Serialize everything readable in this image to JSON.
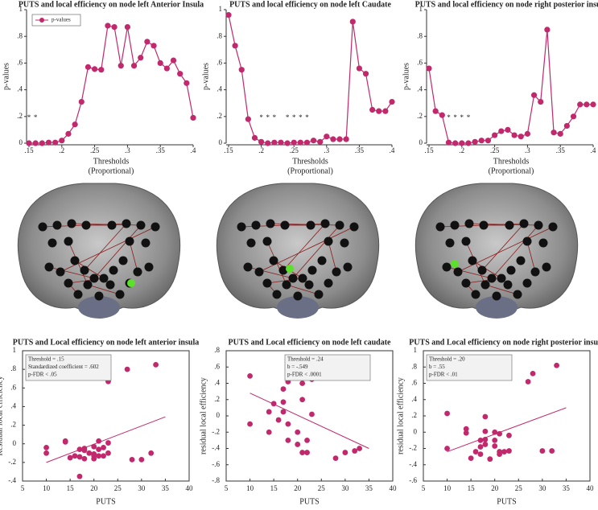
{
  "chart_data": [
    {
      "type": "line",
      "title": "PUTS and local efficiency on node left Anterior Insula",
      "xlabel": [
        "Thresholds",
        "(Proportional)"
      ],
      "ylabel": "p-values",
      "x": [
        0.15,
        0.16,
        0.17,
        0.18,
        0.19,
        0.2,
        0.21,
        0.22,
        0.23,
        0.24,
        0.25,
        0.26,
        0.27,
        0.28,
        0.29,
        0.3,
        0.31,
        0.32,
        0.33,
        0.34,
        0.35,
        0.36,
        0.37,
        0.38,
        0.39,
        0.4
      ],
      "series": [
        {
          "name": "p-values",
          "color": "#c2286c",
          "values": [
            0,
            0,
            0,
            0.005,
            0.005,
            0.02,
            0.07,
            0.14,
            0.31,
            0.57,
            0.555,
            0.55,
            0.88,
            0.87,
            0.58,
            0.87,
            0.58,
            0.64,
            0.76,
            0.73,
            0.6,
            0.56,
            0.62,
            0.52,
            0.45,
            0.19
          ]
        }
      ],
      "legend": "upper left",
      "xlim": [
        0.15,
        0.4
      ],
      "ylim": [
        0,
        1
      ],
      "xticks": [
        {
          "value": 0.15,
          "label": ".15"
        },
        {
          "value": 0.2,
          "label": ".2"
        },
        {
          "value": 0.25,
          "label": ".25"
        },
        {
          "value": 0.3,
          "label": ".3"
        },
        {
          "value": 0.35,
          "label": ".35"
        },
        {
          "value": 0.4,
          "label": ".4"
        }
      ],
      "yticks": [
        0,
        {
          "value": 0.2,
          "label": ".2"
        },
        {
          "value": 0.4,
          "label": ".4"
        },
        {
          "value": 0.6,
          "label": ".6"
        },
        {
          "value": 0.8,
          "label": ".8"
        },
        1
      ],
      "annotations": [
        {
          "text": "*",
          "x": 0.15,
          "y": 0.2
        },
        {
          "text": "*",
          "x": 0.16,
          "y": 0.2
        }
      ]
    },
    {
      "type": "line",
      "title": "PUTS and local efficiency on node left Caudate",
      "xlabel": [
        "Thresholds",
        "(Proportional)"
      ],
      "ylabel": "p-values",
      "x": [
        0.15,
        0.16,
        0.17,
        0.18,
        0.19,
        0.2,
        0.21,
        0.22,
        0.23,
        0.24,
        0.25,
        0.26,
        0.27,
        0.28,
        0.29,
        0.3,
        0.31,
        0.32,
        0.33,
        0.34,
        0.35,
        0.36,
        0.37,
        0.38,
        0.39,
        0.4
      ],
      "series": [
        {
          "color": "#c2286c",
          "values": [
            0.96,
            0.73,
            0.55,
            0.18,
            0.04,
            0.01,
            0,
            0.005,
            0.005,
            0,
            0.005,
            0.005,
            0.005,
            0.02,
            0.01,
            0.05,
            0.03,
            0.03,
            0.03,
            0.91,
            0.56,
            0.52,
            0.25,
            0.24,
            0.24,
            0.31
          ]
        }
      ],
      "xlim": [
        0.15,
        0.4
      ],
      "ylim": [
        0,
        1
      ],
      "xticks": [
        {
          "value": 0.15,
          "label": ".15"
        },
        {
          "value": 0.2,
          "label": ".2"
        },
        {
          "value": 0.25,
          "label": ".25"
        },
        {
          "value": 0.3,
          "label": ".3"
        },
        {
          "value": 0.35,
          "label": ".35"
        },
        {
          "value": 0.4,
          "label": ".4"
        }
      ],
      "yticks": [
        0,
        {
          "value": 0.2,
          "label": ".2"
        },
        {
          "value": 0.4,
          "label": ".4"
        },
        {
          "value": 0.6,
          "label": ".6"
        },
        {
          "value": 0.8,
          "label": ".8"
        },
        1
      ],
      "annotations": [
        {
          "text": "*",
          "x": 0.2,
          "y": 0.2
        },
        {
          "text": "*",
          "x": 0.21,
          "y": 0.2
        },
        {
          "text": "*",
          "x": 0.22,
          "y": 0.2
        },
        {
          "text": "*",
          "x": 0.24,
          "y": 0.2
        },
        {
          "text": "*",
          "x": 0.25,
          "y": 0.2
        },
        {
          "text": "*",
          "x": 0.26,
          "y": 0.2
        },
        {
          "text": "*",
          "x": 0.27,
          "y": 0.2
        }
      ]
    },
    {
      "type": "line",
      "title": "PUTS and local efficiency on node right posterior insula",
      "xlabel": [
        "Thresholds",
        "(Proportional)"
      ],
      "ylabel": "p-values",
      "x": [
        0.15,
        0.16,
        0.17,
        0.18,
        0.19,
        0.2,
        0.21,
        0.22,
        0.23,
        0.24,
        0.25,
        0.26,
        0.27,
        0.28,
        0.29,
        0.3,
        0.31,
        0.32,
        0.33,
        0.34,
        0.35,
        0.36,
        0.37,
        0.38,
        0.39,
        0.4
      ],
      "series": [
        {
          "color": "#c2286c",
          "values": [
            0.56,
            0.24,
            0.21,
            0.005,
            0,
            0,
            0,
            0.01,
            0.02,
            0.02,
            0.06,
            0.09,
            0.1,
            0.06,
            0.05,
            0.07,
            0.36,
            0.31,
            0.85,
            0.08,
            0.07,
            0.13,
            0.2,
            0.29,
            0.29,
            0.29
          ]
        }
      ],
      "xlim": [
        0.15,
        0.4
      ],
      "ylim": [
        0,
        1
      ],
      "xticks": [
        {
          "value": 0.15,
          "label": ".15"
        },
        {
          "value": 0.2,
          "label": ".2"
        },
        {
          "value": 0.25,
          "label": ".25"
        },
        {
          "value": 0.3,
          "label": ".3"
        },
        {
          "value": 0.35,
          "label": ".35"
        },
        {
          "value": 0.4,
          "label": ".4"
        }
      ],
      "yticks": [
        0,
        {
          "value": 0.2,
          "label": ".2"
        },
        {
          "value": 0.4,
          "label": ".4"
        },
        {
          "value": 0.6,
          "label": ".6"
        },
        {
          "value": 0.8,
          "label": ".8"
        },
        1
      ],
      "annotations": [
        {
          "text": "*",
          "x": 0.18,
          "y": 0.2
        },
        {
          "text": "*",
          "x": 0.19,
          "y": 0.2
        },
        {
          "text": "*",
          "x": 0.2,
          "y": 0.2
        },
        {
          "text": "*",
          "x": 0.21,
          "y": 0.2
        }
      ]
    },
    {
      "type": "scatter",
      "title": "PUTS and Local efficiency on node left anterior insula",
      "xlabel": "PUTS",
      "ylabel": "Residual local efficiency",
      "color": "#c2286c",
      "x": [
        10,
        10,
        14,
        14,
        15,
        16,
        17,
        17,
        17,
        18,
        18,
        18,
        19,
        20,
        20,
        20,
        20,
        21,
        21,
        21,
        22,
        22,
        23,
        23,
        23,
        27,
        28,
        30,
        32,
        33
      ],
      "values": [
        -0.04,
        -0.1,
        0.03,
        0.02,
        -0.15,
        -0.13,
        -0.35,
        -0.06,
        -0.14,
        -0.07,
        -0.05,
        -0.16,
        -0.1,
        -0.03,
        -0.11,
        -0.16,
        -0.13,
        0.03,
        -0.06,
        -0.13,
        -0.04,
        -0.13,
        0.67,
        0.01,
        -0.1,
        0.8,
        -0.17,
        -0.17,
        -0.1,
        0.85
      ],
      "trend_line": {
        "x": [
          10,
          35
        ],
        "y": [
          -0.2,
          0.29
        ]
      },
      "annotation": [
        "Threshold = .15",
        "Standardized coefficient = .602",
        "p-FDR < .05"
      ],
      "annotation_position": "upper left",
      "xlim": [
        5,
        40
      ],
      "ylim": [
        -0.4,
        1
      ],
      "xticks": [
        5,
        10,
        15,
        20,
        25,
        30,
        35,
        40
      ],
      "yticks": [
        {
          "value": -0.4,
          "label": "-.4"
        },
        {
          "value": -0.2,
          "label": "-.2"
        },
        0,
        {
          "value": 0.2,
          "label": ".2"
        },
        {
          "value": 0.4,
          "label": ".4"
        },
        {
          "value": 0.6,
          "label": ".6"
        },
        {
          "value": 0.8,
          "label": ".8"
        },
        1
      ]
    },
    {
      "type": "scatter",
      "title": "PUTS and Local efficiency on node left caudate",
      "xlabel": "PUTS",
      "ylabel": "residual local efficiency",
      "color": "#c2286c",
      "x": [
        10,
        10,
        14,
        14,
        15,
        16,
        17,
        17,
        17,
        18,
        18,
        18,
        18,
        18,
        20,
        20,
        20,
        21,
        21,
        21,
        22,
        22,
        23,
        23,
        27,
        28,
        30,
        32,
        33
      ],
      "values": [
        0.49,
        -0.1,
        -0.2,
        0.05,
        0.15,
        -0.05,
        0.33,
        0.17,
        0.05,
        0.6,
        0.63,
        0.42,
        -0.3,
        -0.1,
        0.49,
        -0.35,
        -0.2,
        -0.45,
        0.2,
        0.4,
        -0.3,
        -0.45,
        0.45,
        0.02,
        0.47,
        -0.52,
        -0.45,
        -0.43,
        -0.4
      ],
      "trend_line": {
        "x": [
          10,
          35
        ],
        "y": [
          0.28,
          -0.4
        ]
      },
      "annotation": [
        "Threshold = .24",
        "b = -.549",
        "p-FDR < .0001"
      ],
      "annotation_position": "upper right",
      "xlim": [
        5,
        40
      ],
      "ylim": [
        -0.8,
        0.8
      ],
      "xticks": [
        5,
        10,
        15,
        20,
        25,
        30,
        35,
        40
      ],
      "yticks": [
        {
          "value": -0.8,
          "label": "-.8"
        },
        {
          "value": -0.6,
          "label": "-.6"
        },
        {
          "value": -0.4,
          "label": "-.4"
        },
        {
          "value": -0.2,
          "label": "-.2"
        },
        0,
        {
          "value": 0.2,
          "label": ".2"
        },
        {
          "value": 0.4,
          "label": ".4"
        },
        {
          "value": 0.6,
          "label": ".6"
        },
        {
          "value": 0.8,
          "label": ".8"
        }
      ]
    },
    {
      "type": "scatter",
      "title": "PUTS and Local efficiency on node right posterior insula",
      "xlabel": "PUTS",
      "ylabel": "residual local efficiency",
      "color": "#c2286c",
      "x": [
        10,
        10,
        14,
        14,
        15,
        16,
        17,
        17,
        17,
        18,
        18,
        18,
        18,
        19,
        20,
        20,
        20,
        21,
        21,
        21,
        22,
        23,
        23,
        23,
        27,
        28,
        30,
        32,
        33
      ],
      "values": [
        0.23,
        -0.2,
        0.04,
        -0.01,
        -0.32,
        -0.24,
        -0.1,
        -0.18,
        -0.27,
        0.19,
        -0.09,
        -0.15,
        0.01,
        -0.33,
        0,
        -0.1,
        -0.17,
        -0.27,
        -0.02,
        -0.24,
        -0.24,
        0.7,
        -0.04,
        -0.23,
        0.62,
        0.72,
        -0.23,
        -0.23,
        0.82
      ],
      "trend_line": {
        "x": [
          10,
          35
        ],
        "y": [
          -0.24,
          0.3
        ]
      },
      "annotation": [
        "Threshold = .20",
        "b = .55",
        "p-FDR < .01"
      ],
      "annotation_position": "upper left",
      "xlim": [
        5,
        40
      ],
      "ylim": [
        -0.6,
        1
      ],
      "xticks": [
        5,
        10,
        15,
        20,
        25,
        30,
        35,
        40
      ],
      "yticks": [
        {
          "value": -0.6,
          "label": "-.6"
        },
        {
          "value": -0.4,
          "label": "-.4"
        },
        {
          "value": -0.2,
          "label": "-.2"
        },
        0,
        {
          "value": 0.2,
          "label": ".2"
        },
        {
          "value": 0.4,
          "label": ".4"
        },
        {
          "value": 0.6,
          "label": ".6"
        },
        {
          "value": 0.8,
          "label": ".8"
        },
        1
      ]
    }
  ]
}
